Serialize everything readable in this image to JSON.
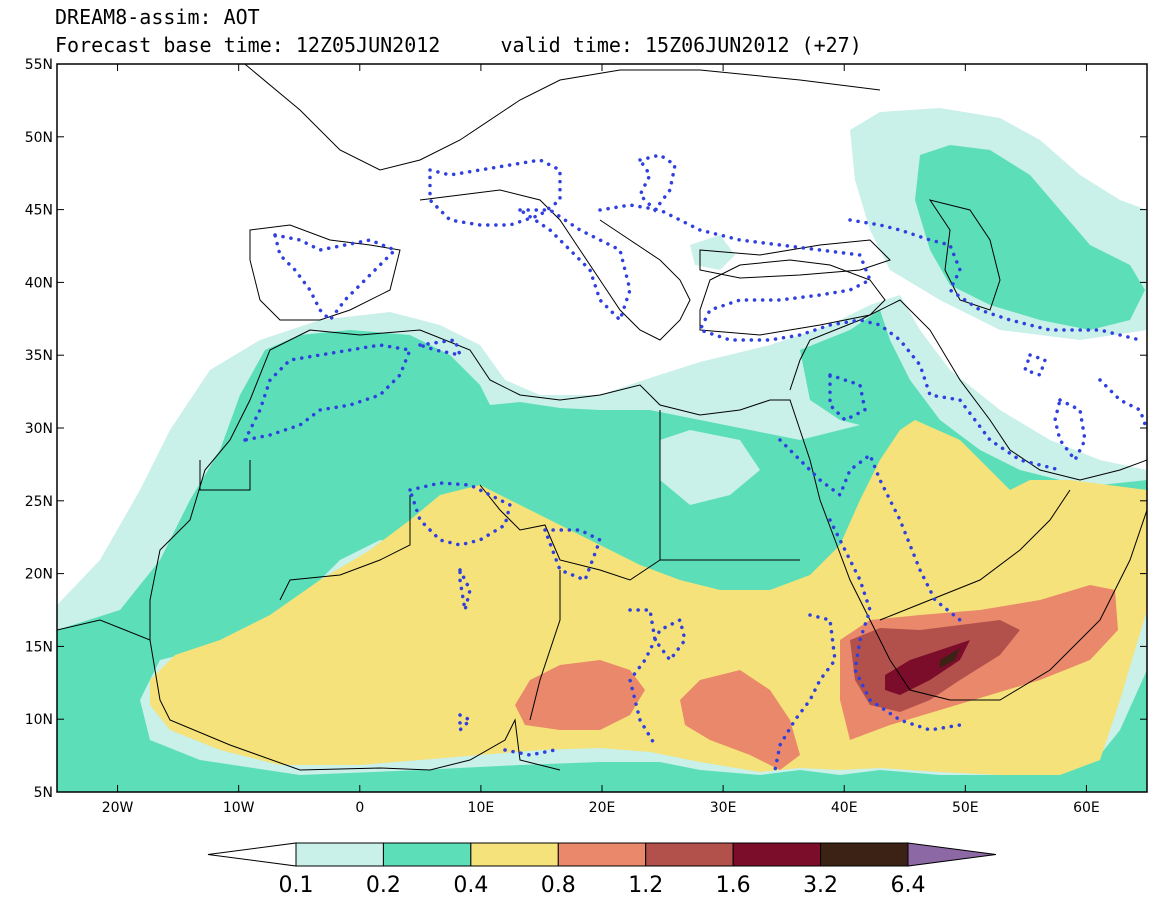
{
  "title": {
    "line1": "DREAM8-assim: AOT",
    "line2": "Forecast base time: 12Z05JUN2012     valid time: 15Z06JUN2012 (+27)"
  },
  "map": {
    "lon_range": [
      -25,
      65
    ],
    "lat_range": [
      5,
      55
    ],
    "lon_ticks": [
      {
        "value": -20,
        "label": "20W"
      },
      {
        "value": -10,
        "label": "10W"
      },
      {
        "value": 0,
        "label": "0"
      },
      {
        "value": 10,
        "label": "10E"
      },
      {
        "value": 20,
        "label": "20E"
      },
      {
        "value": 30,
        "label": "30E"
      },
      {
        "value": 40,
        "label": "40E"
      },
      {
        "value": 50,
        "label": "50E"
      },
      {
        "value": 60,
        "label": "60E"
      }
    ],
    "lat_ticks": [
      {
        "value": 55,
        "label": "55N"
      },
      {
        "value": 50,
        "label": "50N"
      },
      {
        "value": 45,
        "label": "45N"
      },
      {
        "value": 40,
        "label": "40N"
      },
      {
        "value": 35,
        "label": "35N"
      },
      {
        "value": 30,
        "label": "30N"
      },
      {
        "value": 25,
        "label": "25N"
      },
      {
        "value": 20,
        "label": "20N"
      },
      {
        "value": 15,
        "label": "15N"
      },
      {
        "value": 10,
        "label": "10N"
      },
      {
        "value": 5,
        "label": "5N"
      }
    ]
  },
  "colorbar": {
    "boundaries": [
      "0.1",
      "0.2",
      "0.4",
      "0.8",
      "1.2",
      "1.6",
      "3.2",
      "6.4"
    ],
    "colors": [
      "#ffffff",
      "#c9f0e9",
      "#5cdfb8",
      "#f5e27a",
      "#e9886a",
      "#b2514c",
      "#7c0d2a",
      "#3c2214",
      "#8c68a4"
    ]
  },
  "colors": {
    "aot_0_1": "#c9f0e9",
    "aot_0_2": "#5cdfb8",
    "aot_0_4": "#f5e27a",
    "aot_0_8": "#e9886a",
    "aot_1_2": "#b2514c",
    "aot_1_6": "#7c0d2a",
    "aot_3_2": "#3c2214",
    "aot_6_4": "#8c68a4",
    "contour": "#3040e0",
    "coast": "#000000"
  }
}
